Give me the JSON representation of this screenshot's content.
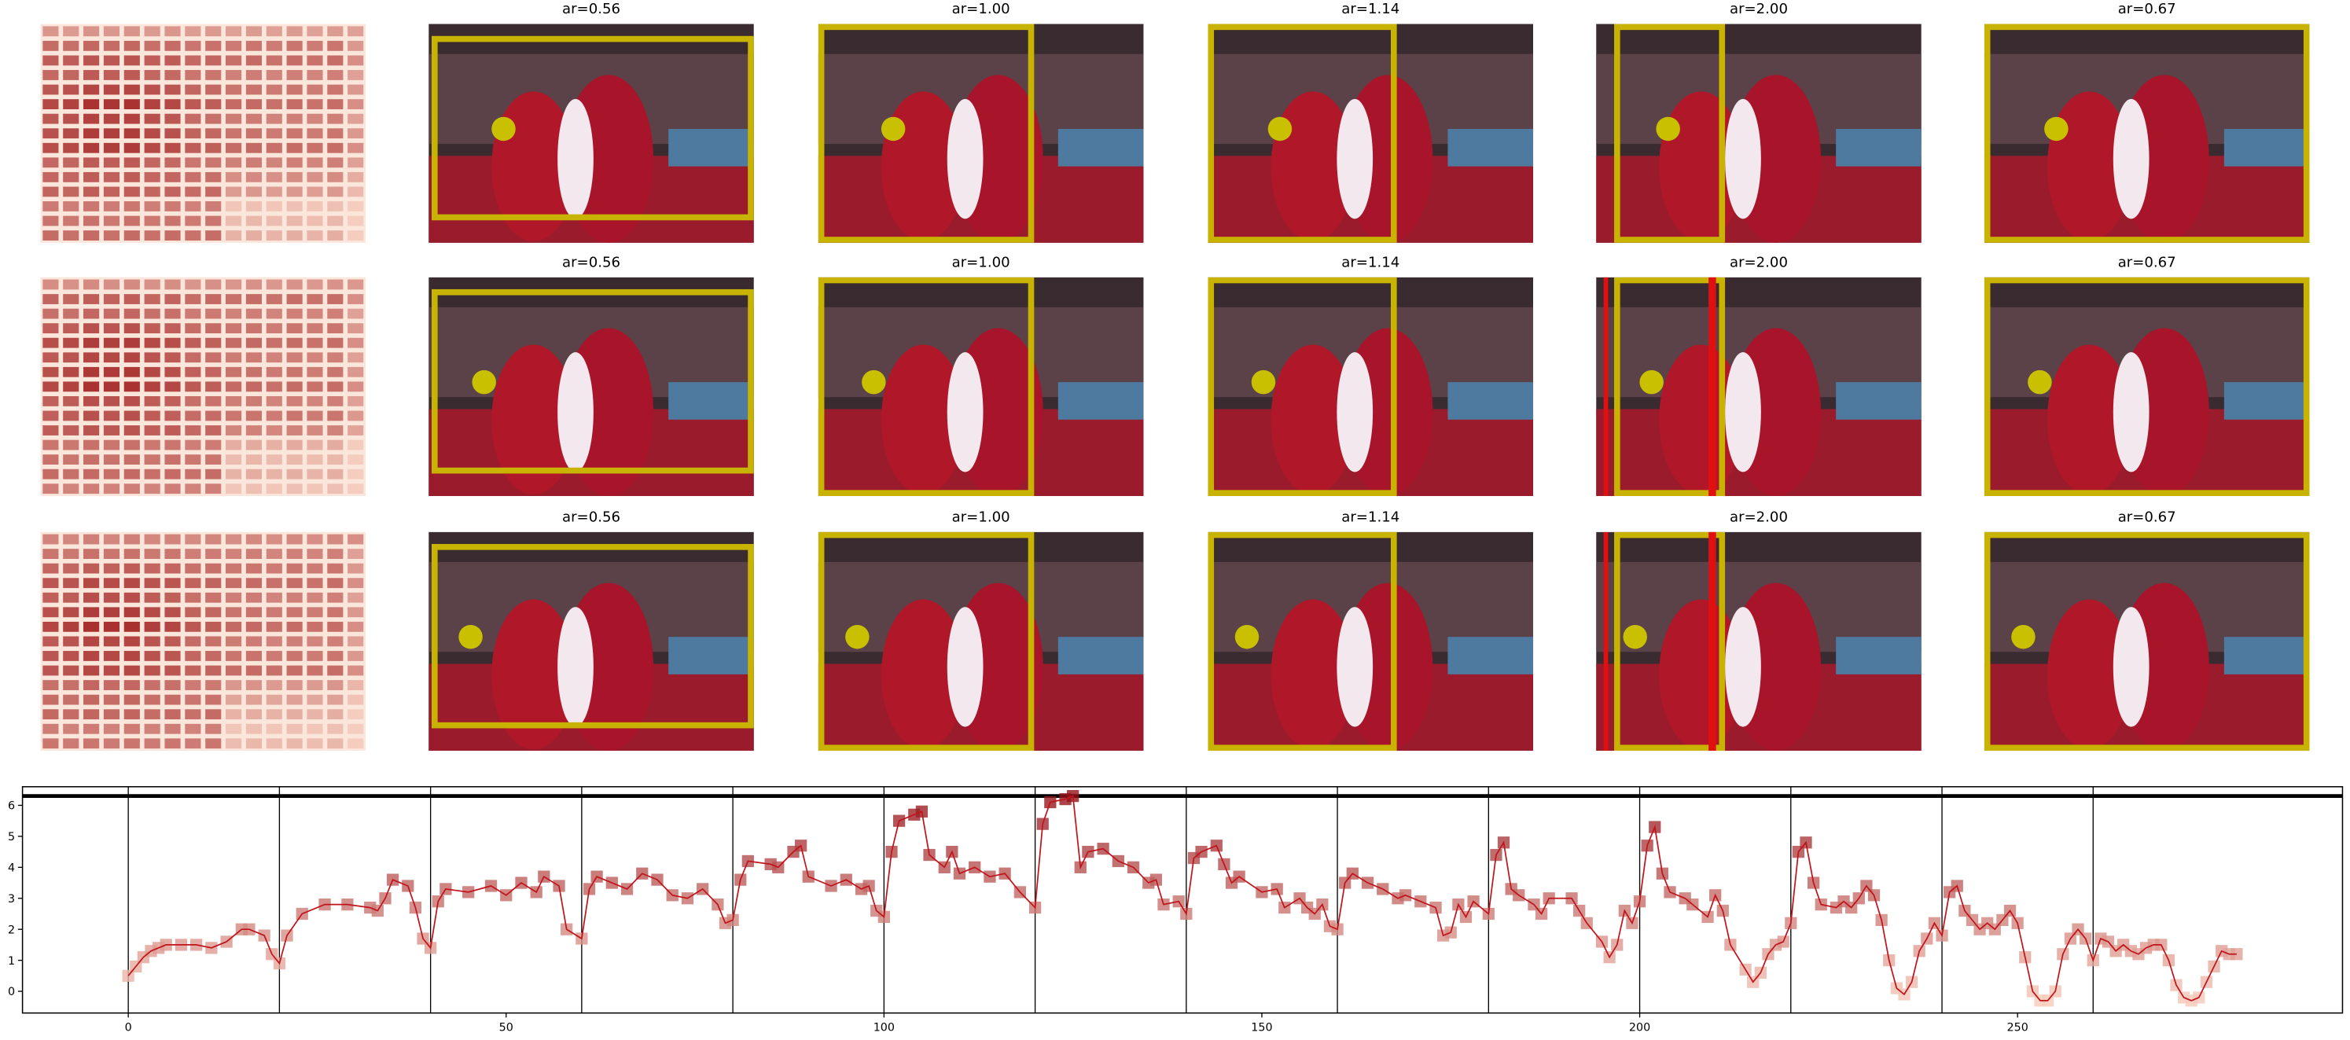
{
  "panels": {
    "titles": [
      [
        "ar=0.56",
        "ar=1.00",
        "ar=1.14",
        "ar=2.00",
        "ar=0.67"
      ],
      [
        "ar=0.56",
        "ar=1.00",
        "ar=1.14",
        "ar=2.00",
        "ar=0.67"
      ],
      [
        "ar=0.56",
        "ar=1.00",
        "ar=1.14",
        "ar=2.00",
        "ar=0.67"
      ]
    ]
  },
  "chart_data": {
    "type": "line",
    "x": [
      0,
      1,
      2,
      3,
      4,
      5,
      7,
      9,
      11,
      13,
      15,
      16,
      18,
      19,
      20,
      21,
      23,
      26,
      29,
      32,
      33,
      34,
      35,
      37,
      38,
      39,
      40,
      41,
      42,
      45,
      48,
      50,
      52,
      54,
      55,
      57,
      58,
      60,
      61,
      62,
      64,
      66,
      68,
      70,
      72,
      74,
      76,
      78,
      79,
      80,
      81,
      82,
      85,
      86,
      88,
      89,
      90,
      93,
      95,
      97,
      98,
      99,
      100,
      101,
      102,
      104,
      105,
      106,
      108,
      109,
      110,
      112,
      114,
      116,
      118,
      120,
      121,
      122,
      124,
      125,
      126,
      127,
      129,
      131,
      133,
      135,
      136,
      137,
      139,
      140,
      141,
      142,
      144,
      145,
      146,
      147,
      150,
      152,
      153,
      155,
      156,
      157,
      158,
      159,
      160,
      161,
      162,
      164,
      166,
      168,
      169,
      171,
      173,
      174,
      175,
      176,
      177,
      178,
      180,
      181,
      182,
      183,
      184,
      186,
      187,
      188,
      191,
      192,
      193,
      195,
      196,
      197,
      198,
      199,
      200,
      201,
      202,
      203,
      204,
      206,
      207,
      209,
      210,
      211,
      212,
      214,
      215,
      216,
      217,
      218,
      219,
      220,
      221,
      222,
      223,
      224,
      226,
      227,
      228,
      229,
      230,
      231,
      232,
      233,
      234,
      235,
      236,
      237,
      238,
      239,
      240,
      241,
      242,
      243,
      244,
      245,
      246,
      247,
      248,
      249,
      250,
      251,
      252,
      253,
      254,
      255,
      256,
      257,
      258,
      259,
      260,
      261,
      262,
      263,
      264,
      265,
      266,
      267,
      268,
      269,
      270,
      271,
      272,
      273,
      274,
      275,
      276,
      277,
      278,
      279
    ],
    "values": [
      0.5,
      0.8,
      1.1,
      1.3,
      1.4,
      1.5,
      1.5,
      1.5,
      1.4,
      1.6,
      2.0,
      2.0,
      1.8,
      1.2,
      0.9,
      1.8,
      2.5,
      2.8,
      2.8,
      2.7,
      2.6,
      3.0,
      3.6,
      3.4,
      2.7,
      1.7,
      1.4,
      2.9,
      3.3,
      3.2,
      3.4,
      3.1,
      3.5,
      3.2,
      3.7,
      3.4,
      2.0,
      1.7,
      3.3,
      3.7,
      3.5,
      3.3,
      3.8,
      3.6,
      3.1,
      3.0,
      3.3,
      2.8,
      2.2,
      2.3,
      3.6,
      4.2,
      4.1,
      4.0,
      4.5,
      4.7,
      3.7,
      3.4,
      3.6,
      3.3,
      3.4,
      2.6,
      2.4,
      4.5,
      5.5,
      5.7,
      5.8,
      4.4,
      4.0,
      4.5,
      3.8,
      4.0,
      3.7,
      3.8,
      3.2,
      2.7,
      5.4,
      6.1,
      6.2,
      6.3,
      4.0,
      4.5,
      4.6,
      4.2,
      4.0,
      3.5,
      3.6,
      2.8,
      2.9,
      2.5,
      4.3,
      4.5,
      4.7,
      4.1,
      3.5,
      3.7,
      3.2,
      3.3,
      2.7,
      3.0,
      2.7,
      2.5,
      2.8,
      2.1,
      2.0,
      3.5,
      3.8,
      3.5,
      3.3,
      3.0,
      3.1,
      2.9,
      2.7,
      1.8,
      1.9,
      2.8,
      2.4,
      2.9,
      2.5,
      4.4,
      4.8,
      3.3,
      3.1,
      2.8,
      2.5,
      3.0,
      3.0,
      2.6,
      2.2,
      1.6,
      1.1,
      1.5,
      2.6,
      2.2,
      2.9,
      4.7,
      5.3,
      3.8,
      3.2,
      3.0,
      2.8,
      2.4,
      3.1,
      2.6,
      1.5,
      0.7,
      0.3,
      0.6,
      1.2,
      1.5,
      1.6,
      2.2,
      4.5,
      4.8,
      3.5,
      2.8,
      2.7,
      2.9,
      2.7,
      3.0,
      3.4,
      3.1,
      2.3,
      1.0,
      0.1,
      -0.1,
      0.3,
      1.3,
      1.7,
      2.2,
      1.8,
      3.2,
      3.4,
      2.6,
      2.3,
      2.0,
      2.2,
      2.0,
      2.3,
      2.6,
      2.2,
      1.1,
      0.0,
      -0.3,
      -0.3,
      0.0,
      1.2,
      1.7,
      2.0,
      1.7,
      1.0,
      1.7,
      1.6,
      1.3,
      1.5,
      1.3,
      1.2,
      1.4,
      1.5,
      1.5,
      1.0,
      0.2,
      -0.2,
      -0.3,
      -0.2,
      0.3,
      0.8,
      1.3,
      1.2,
      1.2
    ],
    "color": "#c0141c",
    "marker_colors": [
      "#fdd5c4",
      "#8f0a12"
    ],
    "xlim": [
      -14,
      293
    ],
    "ylim": [
      -0.7,
      6.6
    ],
    "xticks": [
      0,
      50,
      100,
      150,
      200,
      250
    ],
    "yticks": [
      0,
      1,
      2,
      3,
      4,
      5,
      6
    ],
    "vlines": [
      0,
      20,
      40,
      60,
      80,
      100,
      120,
      140,
      160,
      180,
      200,
      220,
      240,
      260
    ],
    "hline": 6.3
  }
}
